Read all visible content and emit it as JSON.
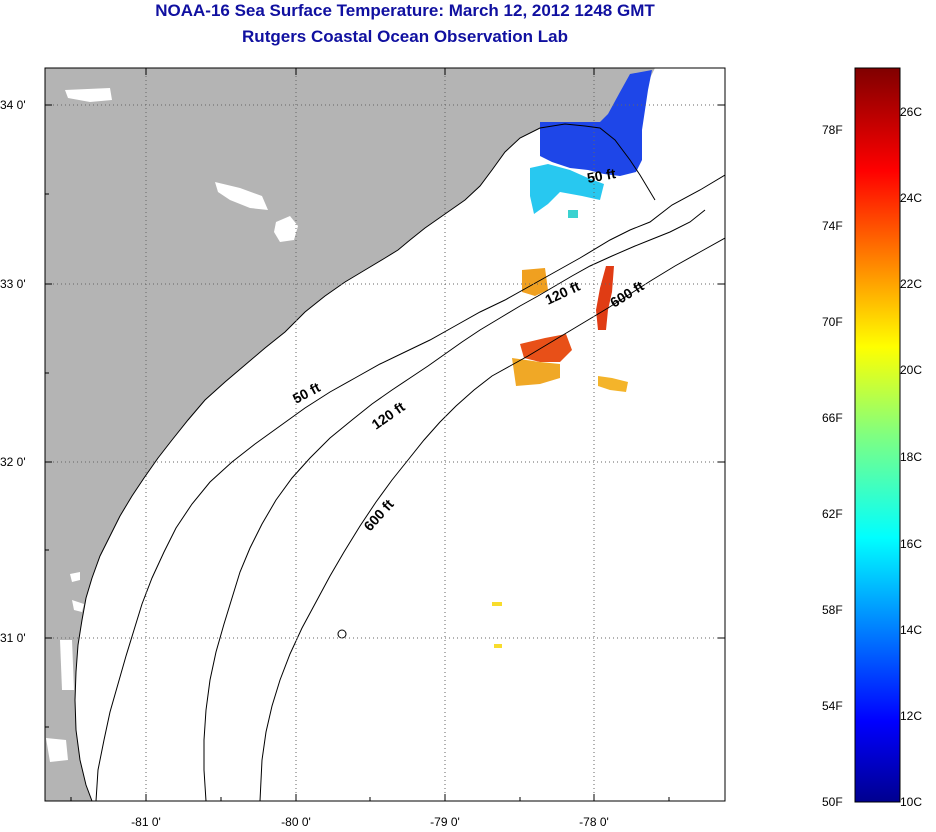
{
  "title": "NOAA-16 Sea Surface Temperature:  March 12, 2012 1248 GMT",
  "subtitle": "Rutgers Coastal Ocean Observation Lab",
  "axes": {
    "lat_labels": [
      "34 0'",
      "33 0'",
      "32 0'",
      "31 0'"
    ],
    "lon_labels": [
      "-81 0'",
      "-80 0'",
      "-79 0'",
      "-78 0'"
    ]
  },
  "contours": {
    "c50a": "50 ft",
    "c50b": "50 ft",
    "c120a": "120 ft",
    "c120b": "120 ft",
    "c600a": "600 ft",
    "c600b": "600 ft"
  },
  "colorbar": {
    "fahrenheit": [
      "78F",
      "74F",
      "70F",
      "66F",
      "62F",
      "58F",
      "54F",
      "50F"
    ],
    "celsius": [
      "26C",
      "24C",
      "22C",
      "20C",
      "18C",
      "16C",
      "14C",
      "12C",
      "10C"
    ]
  }
}
